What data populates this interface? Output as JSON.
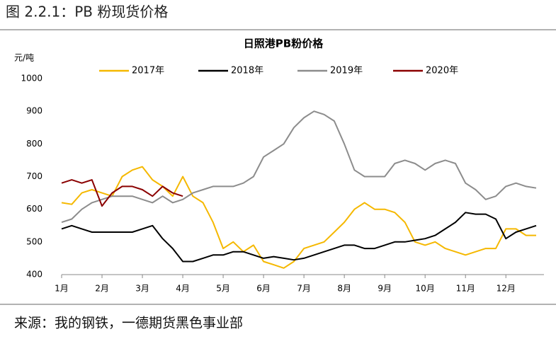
{
  "figure_title": "图 2.2.1：PB 粉现货价格",
  "source": "来源：我的钢铁，一德期货黑色事业部",
  "chart_data": {
    "type": "line",
    "title": "日照港PB粉价格",
    "y_label": "元/吨",
    "categories": [
      "1月",
      null,
      null,
      null,
      "2月",
      null,
      null,
      null,
      "3月",
      null,
      null,
      null,
      "4月",
      null,
      null,
      null,
      "5月",
      null,
      null,
      null,
      "6月",
      null,
      null,
      null,
      "7月",
      null,
      null,
      null,
      "8月",
      null,
      null,
      null,
      "9月",
      null,
      null,
      null,
      "10月",
      null,
      null,
      null,
      "11月",
      null,
      null,
      null,
      "12月",
      null,
      null,
      null
    ],
    "series": [
      {
        "name": "2017年",
        "color": "#f5b800",
        "values": [
          620,
          615,
          650,
          660,
          650,
          640,
          700,
          720,
          730,
          690,
          670,
          640,
          700,
          640,
          620,
          560,
          480,
          500,
          470,
          490,
          440,
          430,
          420,
          440,
          480,
          490,
          500,
          530,
          560,
          600,
          620,
          600,
          600,
          590,
          560,
          500,
          490,
          500,
          480,
          470,
          460,
          470,
          480,
          480,
          540,
          540,
          520,
          520
        ]
      },
      {
        "name": "2018年",
        "color": "#000000",
        "values": [
          540,
          550,
          540,
          530,
          530,
          530,
          530,
          530,
          540,
          550,
          510,
          480,
          440,
          440,
          450,
          460,
          460,
          470,
          470,
          460,
          450,
          455,
          450,
          445,
          450,
          460,
          470,
          480,
          490,
          490,
          480,
          480,
          490,
          500,
          500,
          505,
          510,
          520,
          540,
          560,
          590,
          585,
          585,
          570,
          510,
          530,
          540,
          550
        ]
      },
      {
        "name": "2019年",
        "color": "#8c8c8c",
        "values": [
          560,
          570,
          600,
          620,
          630,
          640,
          640,
          640,
          630,
          620,
          640,
          620,
          630,
          650,
          660,
          670,
          670,
          670,
          680,
          700,
          760,
          780,
          800,
          850,
          880,
          900,
          890,
          870,
          800,
          720,
          700,
          700,
          700,
          740,
          750,
          740,
          720,
          740,
          750,
          740,
          680,
          660,
          630,
          640,
          670,
          680,
          670,
          665
        ]
      },
      {
        "name": "2020年",
        "color": "#8b0000",
        "values": [
          680,
          690,
          680,
          690,
          610,
          650,
          670,
          670,
          660,
          640,
          670,
          650,
          640,
          null,
          null,
          null,
          null,
          null,
          null,
          null,
          null,
          null,
          null,
          null,
          null,
          null,
          null,
          null,
          null,
          null,
          null,
          null,
          null,
          null,
          null,
          null,
          null,
          null,
          null,
          null,
          null,
          null,
          null,
          null,
          null,
          null,
          null,
          null
        ]
      }
    ],
    "ylim": [
      400,
      1000
    ],
    "yticks": [
      400,
      500,
      600,
      700,
      800,
      900,
      1000
    ],
    "grid": false,
    "legend": "top"
  }
}
